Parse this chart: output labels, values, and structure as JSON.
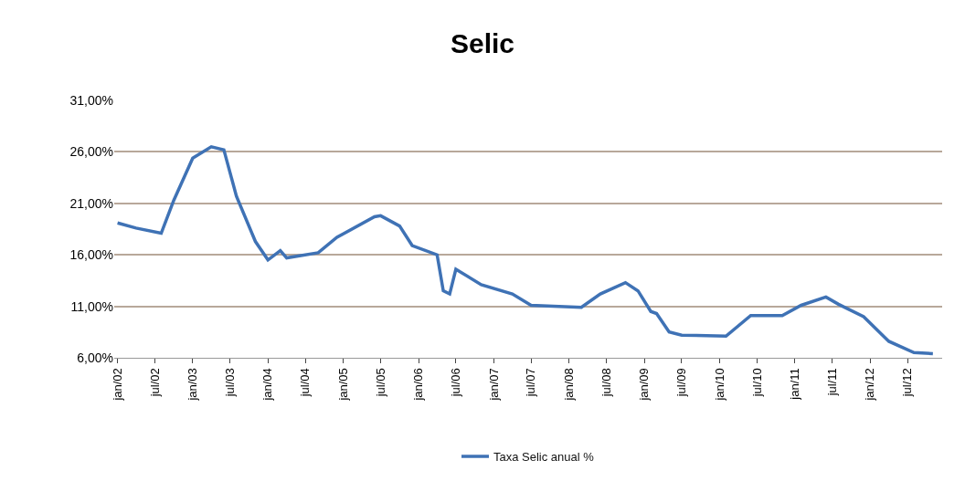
{
  "chart_data": {
    "type": "line",
    "title": "Selic",
    "x": [
      "2002-01",
      "2002-04",
      "2002-08",
      "2002-10",
      "2003-01",
      "2003-04",
      "2003-06",
      "2003-08",
      "2003-11",
      "2004-01",
      "2004-03",
      "2004-04",
      "2004-09",
      "2004-12",
      "2005-06",
      "2005-07",
      "2005-10",
      "2005-12",
      "2006-04",
      "2006-05",
      "2006-06",
      "2006-07",
      "2006-11",
      "2007-04",
      "2007-07",
      "2008-03",
      "2008-06",
      "2008-10",
      "2008-12",
      "2009-02",
      "2009-03",
      "2009-05",
      "2009-07",
      "2010-02",
      "2010-06",
      "2010-11",
      "2011-02",
      "2011-06",
      "2011-08",
      "2011-12",
      "2012-04",
      "2012-08",
      "2012-11"
    ],
    "series": [
      {
        "name": "Taxa Selic anual %",
        "color": "#3f72b5",
        "values": [
          19.1,
          18.6,
          18.1,
          21.3,
          25.4,
          26.5,
          26.2,
          21.7,
          17.3,
          15.5,
          16.4,
          15.7,
          16.2,
          17.7,
          19.7,
          19.8,
          18.8,
          16.9,
          16.0,
          12.5,
          12.2,
          14.6,
          13.1,
          12.2,
          11.1,
          10.9,
          12.2,
          13.3,
          12.5,
          10.5,
          10.3,
          8.5,
          8.2,
          8.1,
          10.1,
          10.1,
          11.1,
          11.9,
          11.2,
          10.0,
          7.6,
          6.5,
          6.4
        ]
      }
    ],
    "ylim": [
      6,
      31
    ],
    "yticks": [
      {
        "value": 6,
        "label": "6,00%"
      },
      {
        "value": 11,
        "label": "11,00%"
      },
      {
        "value": 16,
        "label": "16,00%"
      },
      {
        "value": 21,
        "label": "21,00%"
      },
      {
        "value": 26,
        "label": "26,00%"
      },
      {
        "value": 31,
        "label": "31,00%"
      }
    ],
    "xlim": [
      "2001-12-16",
      "2012-12-16"
    ],
    "xticks": [
      {
        "value": "2002-01",
        "label": "jan/02"
      },
      {
        "value": "2002-07",
        "label": "jul/02"
      },
      {
        "value": "2003-01",
        "label": "jan/03"
      },
      {
        "value": "2003-07",
        "label": "jul/03"
      },
      {
        "value": "2004-01",
        "label": "jan/04"
      },
      {
        "value": "2004-07",
        "label": "jul/04"
      },
      {
        "value": "2005-01",
        "label": "jan/05"
      },
      {
        "value": "2005-07",
        "label": "jul/05"
      },
      {
        "value": "2006-01",
        "label": "jan/06"
      },
      {
        "value": "2006-07",
        "label": "jul/06"
      },
      {
        "value": "2007-01",
        "label": "jan/07"
      },
      {
        "value": "2007-07",
        "label": "jul/07"
      },
      {
        "value": "2008-01",
        "label": "jan/08"
      },
      {
        "value": "2008-07",
        "label": "jul/08"
      },
      {
        "value": "2009-01",
        "label": "jan/09"
      },
      {
        "value": "2009-07",
        "label": "jul/09"
      },
      {
        "value": "2010-01",
        "label": "jan/10"
      },
      {
        "value": "2010-07",
        "label": "jul/10"
      },
      {
        "value": "2011-01",
        "label": "jan/11"
      },
      {
        "value": "2011-07",
        "label": "jul/11"
      },
      {
        "value": "2012-01",
        "label": "jan/12"
      },
      {
        "value": "2012-07",
        "label": "jul/12"
      }
    ],
    "grid": "y",
    "legend": "bottom",
    "marker": "none",
    "line_style": "solid"
  }
}
